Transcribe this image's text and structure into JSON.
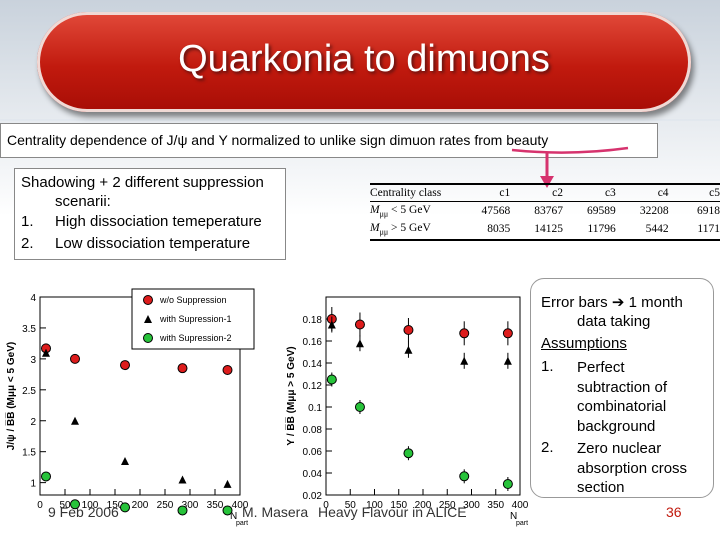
{
  "title": "Quarkonia to dimuons",
  "subtitle": "Centrality dependence of J/ψ and Υ normalized to unlike sign dimuon rates from beauty",
  "left_box": {
    "line1": "Shadowing + 2 different suppression",
    "line2": "scenarii:",
    "items": [
      {
        "num": "1.",
        "text": "High dissociation temeperature"
      },
      {
        "num": "2.",
        "text": "Low dissociation temperature"
      }
    ]
  },
  "right_box": {
    "error_bars_a": "Error bars",
    "error_bars_b": "1 month",
    "error_bars_c": "data taking",
    "assumptions": "Assumptions",
    "items": [
      {
        "num": "1.",
        "lines": [
          "Perfect",
          "subtraction of",
          "combinatorial",
          "background"
        ]
      },
      {
        "num": "2.",
        "lines": [
          "Zero nuclear",
          "absorption cross",
          "section"
        ]
      }
    ]
  },
  "table": {
    "header": [
      "Centrality class",
      "c1",
      "c2",
      "c3",
      "c4",
      "c5"
    ],
    "rows": [
      {
        "label_m": "M",
        "label_sub": "μμ",
        "label_rest": " < 5 GeV",
        "values": [
          "47568",
          "83767",
          "69589",
          "32208",
          "6918"
        ]
      },
      {
        "label_m": "M",
        "label_sub": "μμ",
        "label_rest": " > 5 GeV",
        "values": [
          "8035",
          "14125",
          "11796",
          "5442",
          "1171"
        ]
      }
    ]
  },
  "footer": {
    "date": "9 Feb 2006",
    "author": "M. Masera",
    "event": "Heavy Flavour in ALICE",
    "page": "36"
  },
  "colors": {
    "title_red": "#c11a0e",
    "series1": "#dd1c1c",
    "series2": "#000000",
    "series3": "#27c33a",
    "arrow": "#d6336e"
  },
  "chart_data": [
    {
      "type": "scatter",
      "ylabel": "J/ψ / B̅B̅ (Mμμ < 5 GeV)",
      "xlabel": "N part",
      "xlim": [
        0,
        400
      ],
      "ylim": [
        0.8,
        4
      ],
      "x_ticks": [
        0,
        50,
        100,
        150,
        200,
        250,
        300,
        350,
        400
      ],
      "y_ticks": [
        1,
        1.5,
        2,
        2.5,
        3,
        3.5,
        4
      ],
      "legend": [
        "w/o Suppression",
        "with Supression-1",
        "with Supression-2"
      ],
      "series": [
        {
          "name": "w/o Suppression",
          "x": [
            12,
            70,
            170,
            285,
            375
          ],
          "y": [
            3.17,
            3.0,
            2.9,
            2.85,
            2.82
          ]
        },
        {
          "name": "with Supression-1",
          "x": [
            12,
            70,
            170,
            285,
            375
          ],
          "y": [
            3.1,
            2.0,
            1.35,
            1.05,
            0.98
          ]
        },
        {
          "name": "with Supression-2",
          "x": [
            12,
            70,
            170,
            285,
            375
          ],
          "y": [
            1.1,
            0.65,
            0.6,
            0.55,
            0.55
          ]
        }
      ]
    },
    {
      "type": "scatter",
      "ylabel": "Υ / B̅B̅ (Mμμ > 5 GeV)",
      "xlabel": "N part",
      "xlim": [
        0,
        400
      ],
      "ylim": [
        0.02,
        0.2
      ],
      "x_ticks": [
        0,
        50,
        100,
        150,
        200,
        250,
        300,
        350,
        400
      ],
      "y_ticks": [
        0.02,
        0.04,
        0.06,
        0.08,
        0.1,
        0.12,
        0.14,
        0.16,
        0.18
      ],
      "series": [
        {
          "name": "w/o Suppression",
          "x": [
            12,
            70,
            170,
            285,
            375
          ],
          "y": [
            0.18,
            0.175,
            0.17,
            0.167,
            0.167
          ]
        },
        {
          "name": "with Supression-1",
          "x": [
            12,
            70,
            170,
            285,
            375
          ],
          "y": [
            0.175,
            0.158,
            0.152,
            0.142,
            0.142
          ]
        },
        {
          "name": "with Supression-2",
          "x": [
            12,
            70,
            170,
            285,
            375
          ],
          "y": [
            0.125,
            0.1,
            0.058,
            0.037,
            0.03
          ]
        }
      ]
    }
  ]
}
